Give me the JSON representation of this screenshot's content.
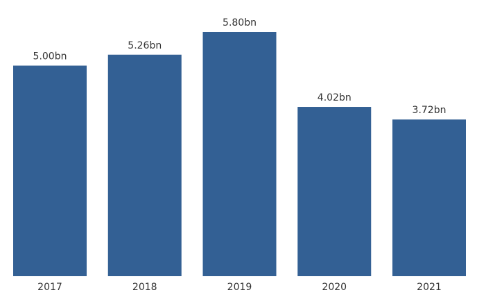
{
  "chart_data": {
    "type": "bar",
    "categories": [
      "2017",
      "2018",
      "2019",
      "2020",
      "2021"
    ],
    "values": [
      5.0,
      5.26,
      5.8,
      4.02,
      3.72
    ],
    "value_labels": [
      "5.00bn",
      "5.26bn",
      "5.80bn",
      "4.02bn",
      "3.72bn"
    ],
    "title": "",
    "xlabel": "",
    "ylabel": "",
    "ylim": [
      0,
      6.2
    ],
    "grid": false,
    "colors": {
      "bar": "#336094",
      "text": "#333333"
    }
  }
}
